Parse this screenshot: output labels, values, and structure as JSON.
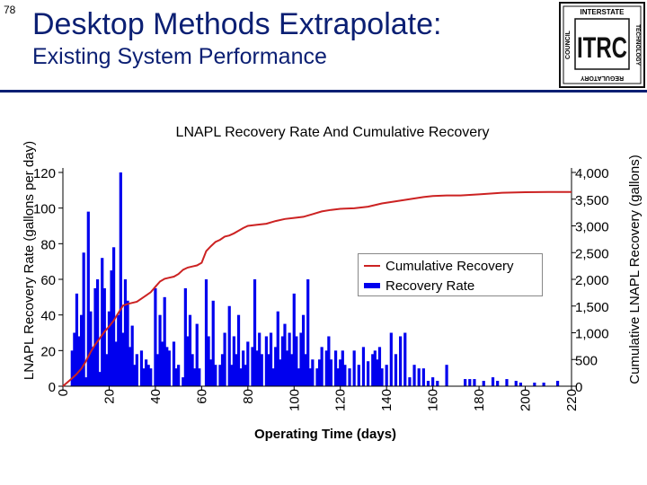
{
  "slide_number": "78",
  "header": {
    "title": "Desktop Methods Extrapolate:",
    "subtitle": "Existing System Performance"
  },
  "logo": {
    "main_text": "ITRC",
    "ring_top": "INTERSTATE",
    "ring_side_left": "COUNCIL",
    "ring_side_right": "TECHNOLOGY",
    "ring_bottom": "REGULATORY"
  },
  "colors": {
    "bars": "#0000ee",
    "line": "#cc2222",
    "title": "#0b1f73"
  },
  "chart_data": {
    "type": "bar+line",
    "title": "LNAPL Recovery Rate And Cumulative Recovery",
    "xlabel": "Operating Time (days)",
    "ylabel": "LNAPL Recovery Rate (gallons per day)",
    "y2label": "Cumulative LNAPL Recovery (gallons)",
    "xlim": [
      0,
      220
    ],
    "ylim": [
      0,
      120
    ],
    "y2lim": [
      0,
      4000
    ],
    "x_ticks": [
      "0",
      "20",
      "40",
      "60",
      "80",
      "100",
      "120",
      "140",
      "160",
      "180",
      "200",
      "220"
    ],
    "y_ticks": [
      "0",
      "20",
      "40",
      "60",
      "80",
      "100",
      "120"
    ],
    "y2_ticks": [
      "0",
      "500",
      "1,000",
      "1,500",
      "2,000",
      "2,500",
      "3,000",
      "3,500",
      "4,000"
    ],
    "legend": [
      "Cumulative Recovery",
      "Recovery Rate"
    ],
    "series": [
      {
        "name": "Recovery Rate",
        "kind": "bar",
        "x": [
          4,
          5,
          6,
          7,
          8,
          9,
          10,
          11,
          12,
          13,
          14,
          15,
          16,
          17,
          18,
          19,
          20,
          21,
          22,
          23,
          24,
          25,
          26,
          27,
          28,
          29,
          30,
          31,
          32,
          34,
          35,
          36,
          37,
          38,
          40,
          41,
          42,
          43,
          44,
          45,
          46,
          48,
          49,
          50,
          52,
          53,
          54,
          55,
          56,
          57,
          58,
          59,
          62,
          63,
          64,
          65,
          66,
          68,
          69,
          70,
          72,
          73,
          74,
          75,
          76,
          77,
          78,
          79,
          80,
          82,
          83,
          84,
          85,
          86,
          88,
          89,
          90,
          91,
          92,
          93,
          94,
          95,
          96,
          97,
          98,
          99,
          100,
          101,
          102,
          103,
          104,
          105,
          106,
          107,
          108,
          110,
          111,
          112,
          114,
          115,
          116,
          118,
          119,
          120,
          121,
          122,
          124,
          126,
          128,
          130,
          132,
          134,
          135,
          136,
          137,
          138,
          140,
          142,
          144,
          146,
          148,
          150,
          152,
          154,
          156,
          158,
          160,
          162,
          166,
          174,
          176,
          178,
          182,
          186,
          188,
          192,
          196,
          198,
          204,
          208,
          214
        ],
        "values": [
          20,
          30,
          52,
          28,
          40,
          75,
          5,
          98,
          42,
          22,
          55,
          60,
          8,
          72,
          55,
          18,
          42,
          65,
          78,
          25,
          40,
          120,
          30,
          60,
          48,
          22,
          34,
          12,
          18,
          20,
          10,
          15,
          12,
          10,
          55,
          18,
          40,
          25,
          50,
          22,
          20,
          25,
          10,
          12,
          5,
          55,
          28,
          40,
          18,
          10,
          35,
          10,
          60,
          28,
          15,
          48,
          12,
          12,
          18,
          30,
          45,
          12,
          28,
          18,
          40,
          10,
          20,
          12,
          25,
          22,
          60,
          20,
          30,
          18,
          28,
          18,
          30,
          10,
          22,
          42,
          15,
          28,
          35,
          20,
          30,
          18,
          52,
          28,
          10,
          30,
          40,
          18,
          60,
          10,
          15,
          10,
          15,
          22,
          20,
          28,
          15,
          20,
          10,
          15,
          20,
          12,
          10,
          20,
          12,
          22,
          14,
          18,
          20,
          15,
          22,
          10,
          12,
          30,
          18,
          28,
          30,
          5,
          12,
          10,
          10,
          3,
          5,
          3,
          12,
          4,
          4,
          4,
          3,
          5,
          3,
          4,
          3,
          2,
          2,
          2,
          3
        ]
      },
      {
        "name": "Cumulative Recovery",
        "kind": "line",
        "x": [
          0,
          4,
          6,
          8,
          10,
          12,
          14,
          16,
          18,
          20,
          22,
          24,
          26,
          28,
          30,
          32,
          34,
          36,
          38,
          40,
          42,
          44,
          46,
          48,
          50,
          52,
          54,
          56,
          58,
          60,
          62,
          64,
          66,
          68,
          70,
          72,
          74,
          76,
          78,
          80,
          84,
          88,
          92,
          96,
          100,
          104,
          108,
          112,
          116,
          120,
          126,
          132,
          138,
          144,
          150,
          156,
          160,
          166,
          172,
          180,
          190,
          200,
          210,
          220
        ],
        "values": [
          0,
          150,
          230,
          330,
          470,
          640,
          780,
          900,
          1020,
          1120,
          1230,
          1370,
          1510,
          1540,
          1560,
          1580,
          1640,
          1700,
          1760,
          1860,
          1960,
          2010,
          2030,
          2050,
          2100,
          2180,
          2220,
          2240,
          2260,
          2310,
          2530,
          2620,
          2700,
          2740,
          2800,
          2820,
          2860,
          2910,
          2960,
          3000,
          3020,
          3040,
          3090,
          3130,
          3150,
          3170,
          3220,
          3270,
          3300,
          3320,
          3330,
          3360,
          3420,
          3460,
          3500,
          3540,
          3560,
          3570,
          3570,
          3590,
          3620,
          3630,
          3635,
          3635
        ]
      }
    ]
  }
}
